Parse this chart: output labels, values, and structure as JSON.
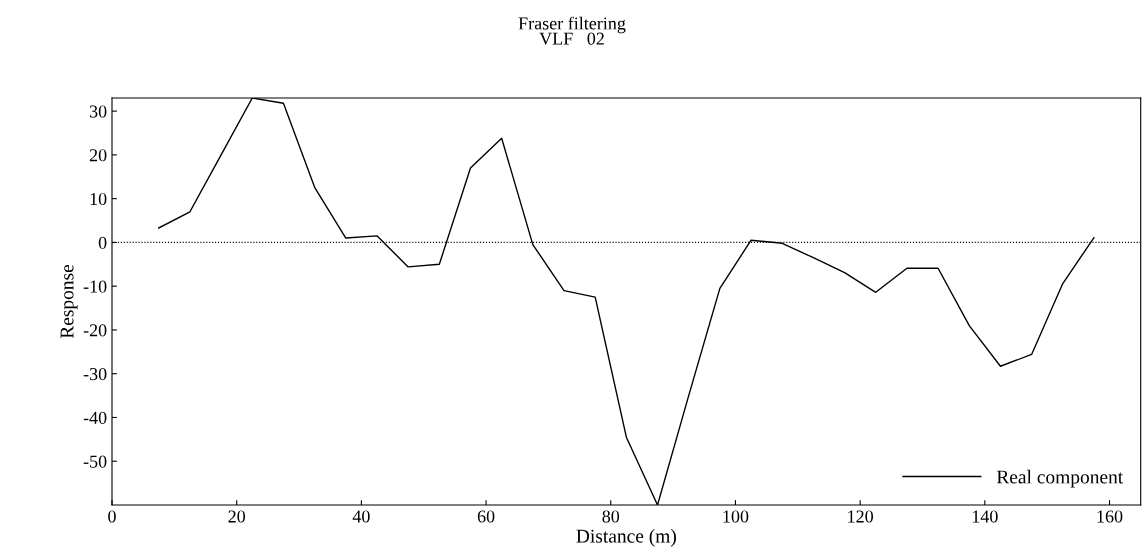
{
  "chart_data": {
    "type": "line",
    "title": "Fraser filtering\nVLF   02",
    "xlabel": "Distance (m)",
    "ylabel": "Response",
    "x": [
      7.5,
      12.5,
      17.5,
      22.5,
      27.5,
      32.5,
      37.5,
      42.5,
      47.5,
      52.5,
      57.5,
      62.5,
      67.5,
      72.5,
      77.5,
      82.5,
      87.5,
      92.5,
      97.5,
      102.5,
      107.5,
      112.5,
      117.5,
      122.5,
      127.5,
      132.5,
      137.5,
      142.5,
      147.5,
      152.5,
      157.5
    ],
    "series": [
      {
        "name": "Real component",
        "color": "#000000",
        "values": [
          3.3,
          7,
          20,
          33,
          31.8,
          12.6,
          1,
          1.5,
          -5.6,
          -5,
          17,
          23.8,
          -0.5,
          -11,
          -12.5,
          -44.5,
          -60,
          -35,
          -10.5,
          0.5,
          -0.2,
          -3.5,
          -6.9,
          -11.4,
          -5.9,
          -5.9,
          -19,
          -28.3,
          -25.6,
          -9.4,
          1.1
        ]
      }
    ],
    "xlim": [
      0,
      165
    ],
    "xticks": [
      0,
      20,
      40,
      60,
      80,
      100,
      120,
      140,
      160
    ],
    "ylim": [
      -60,
      33
    ],
    "yticks": [
      -50,
      -40,
      -30,
      -20,
      -10,
      0,
      10,
      20,
      30
    ],
    "ref_lines": [
      {
        "axis": "y",
        "value": 0,
        "line_style": "dotted",
        "color": "#000000"
      }
    ],
    "grid": false,
    "legend": "bottom right",
    "marker": "none",
    "line_style": "solid"
  }
}
